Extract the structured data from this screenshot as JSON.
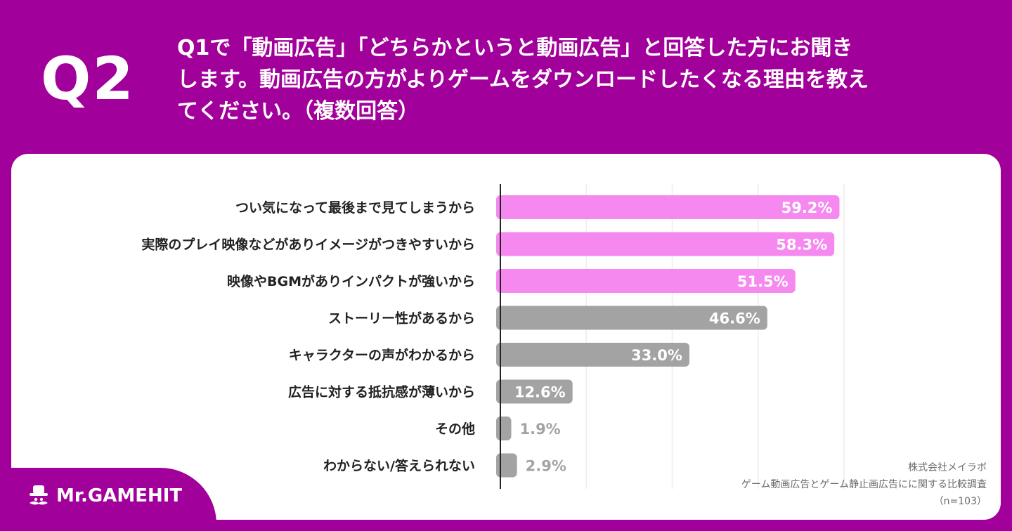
{
  "header": {
    "badge": "Q2",
    "question_lines": [
      "Q1で「動画広告」「どちらかというと動画広告」と回答した方にお聞き",
      "します。動画広告の方がよりゲームをダウンロードしたくなる理由を教え",
      "てください。（複数回答）"
    ]
  },
  "brand": {
    "name": "Mr.GAMEHIT",
    "icon": "gamehit-mustache-hat-icon"
  },
  "source": {
    "company": "株式会社メイラボ",
    "survey": "ゲーム動画広告とゲーム静止画広告にに関する比較調査",
    "sample": "（n=103）"
  },
  "colors": {
    "background": "#a2009a",
    "highlight_bar": "#f589f0",
    "normal_bar": "#a3a3a3",
    "outside_label": "#a3a3a3"
  },
  "chart_data": {
    "type": "bar",
    "orientation": "horizontal",
    "categories": [
      "つい気になって最後まで見てしまうから",
      "実際のプレイ映像などがありイメージがつきやすいから",
      "映像やBGMがありインパクトが強いから",
      "ストーリー性があるから",
      "キャラクターの声がわかるから",
      "広告に対する抵抗感が薄いから",
      "その他",
      "わからない/答えられない"
    ],
    "values": [
      59.2,
      58.3,
      51.5,
      46.6,
      33.0,
      12.6,
      1.9,
      2.9
    ],
    "value_labels": [
      "59.2%",
      "58.3%",
      "51.5%",
      "46.6%",
      "33.0%",
      "12.6%",
      "1.9%",
      "2.9%"
    ],
    "highlighted": [
      true,
      true,
      true,
      false,
      false,
      false,
      false,
      false
    ],
    "unit": "%",
    "xlim": [
      0,
      60
    ],
    "grid": true,
    "title": "",
    "xlabel": "",
    "ylabel": ""
  }
}
